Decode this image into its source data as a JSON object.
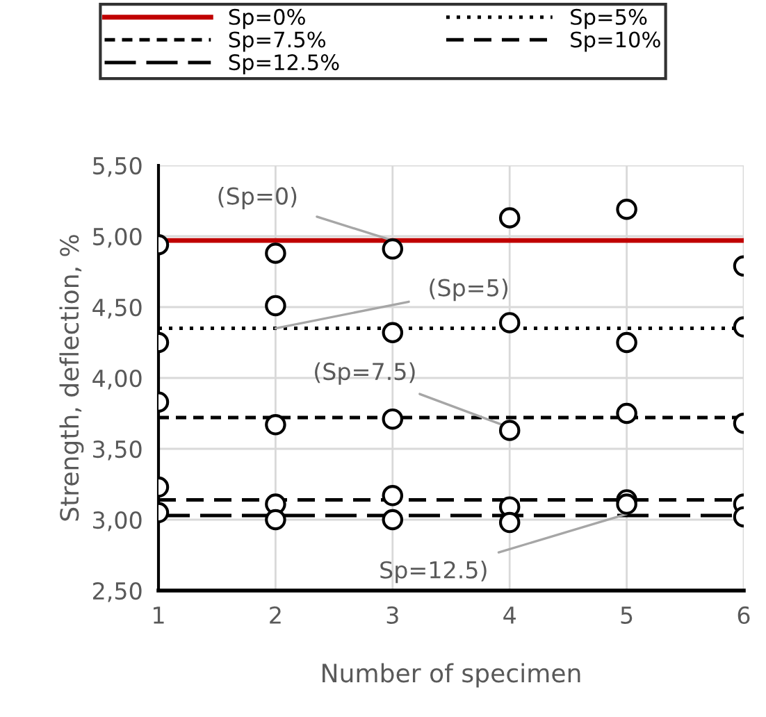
{
  "chart_data": {
    "type": "line",
    "xlabel": "Number of specimen",
    "ylabel": "Strength, deflection, %",
    "xlim": [
      1,
      6
    ],
    "xticks": [
      1,
      2,
      3,
      4,
      5,
      6
    ],
    "ylim": [
      2.5,
      5.5
    ],
    "yticks": [
      {
        "value": 2.5,
        "label": "2,50"
      },
      {
        "value": 3.0,
        "label": "3,00"
      },
      {
        "value": 3.5,
        "label": "3,50"
      },
      {
        "value": 4.0,
        "label": "4,00"
      },
      {
        "value": 4.5,
        "label": "4,50"
      },
      {
        "value": 5.0,
        "label": "5,00"
      },
      {
        "value": 5.5,
        "label": "5,50"
      }
    ],
    "grid": true,
    "legend": "top",
    "series": [
      {
        "name": "Sp=0%",
        "color": "#c00000",
        "line_style": "solid",
        "x": [
          1,
          6
        ],
        "values": [
          4.97,
          4.97
        ]
      },
      {
        "name": "Sp=5%",
        "color": "#000000",
        "line_style": "dotted",
        "x": [
          1,
          6
        ],
        "values": [
          4.35,
          4.35
        ]
      },
      {
        "name": "Sp=7.5%",
        "color": "#000000",
        "line_style": "dashed",
        "x": [
          1,
          6
        ],
        "values": [
          3.72,
          3.72
        ]
      },
      {
        "name": "Sp=10%",
        "color": "#000000",
        "line_style": "dashed",
        "x": [
          1,
          6
        ],
        "values": [
          3.14,
          3.14
        ]
      },
      {
        "name": "Sp=12.5%",
        "color": "#000000",
        "line_style": "dashed",
        "x": [
          1,
          6
        ],
        "values": [
          3.03,
          3.03
        ]
      },
      {
        "type": "scatter",
        "color": "#000000",
        "marker": "circle",
        "x": [
          1,
          2,
          3,
          4,
          5,
          6
        ],
        "values": [
          4.94,
          4.88,
          4.91,
          5.13,
          5.19,
          4.79
        ]
      },
      {
        "type": "scatter",
        "color": "#000000",
        "marker": "circle",
        "x": [
          1,
          2,
          3,
          4,
          5,
          6
        ],
        "values": [
          4.25,
          4.51,
          4.32,
          4.39,
          4.25,
          4.36
        ]
      },
      {
        "type": "scatter",
        "color": "#000000",
        "marker": "circle",
        "x": [
          1,
          2,
          3,
          4,
          5,
          6
        ],
        "values": [
          3.83,
          3.67,
          3.71,
          3.63,
          3.75,
          3.68
        ]
      },
      {
        "type": "scatter",
        "color": "#000000",
        "marker": "circle",
        "x": [
          1,
          2,
          3,
          4,
          5,
          6
        ],
        "values": [
          3.23,
          3.11,
          3.17,
          3.09,
          3.14,
          3.11
        ]
      },
      {
        "type": "scatter",
        "color": "#000000",
        "marker": "circle",
        "x": [
          1,
          2,
          3,
          4,
          5,
          6
        ],
        "values": [
          3.05,
          3.0,
          3.0,
          2.98,
          3.11,
          3.02
        ]
      }
    ],
    "annotations": [
      {
        "text": "(Sp=0)",
        "x": 3,
        "y": 4.97
      },
      {
        "text": "(Sp=5)",
        "x": 2,
        "y": 4.35
      },
      {
        "text": "(Sp=7.5)",
        "x": 4,
        "y": 3.65
      },
      {
        "text": "Sp=12.5)",
        "x": 5,
        "y": 3.04
      }
    ]
  }
}
